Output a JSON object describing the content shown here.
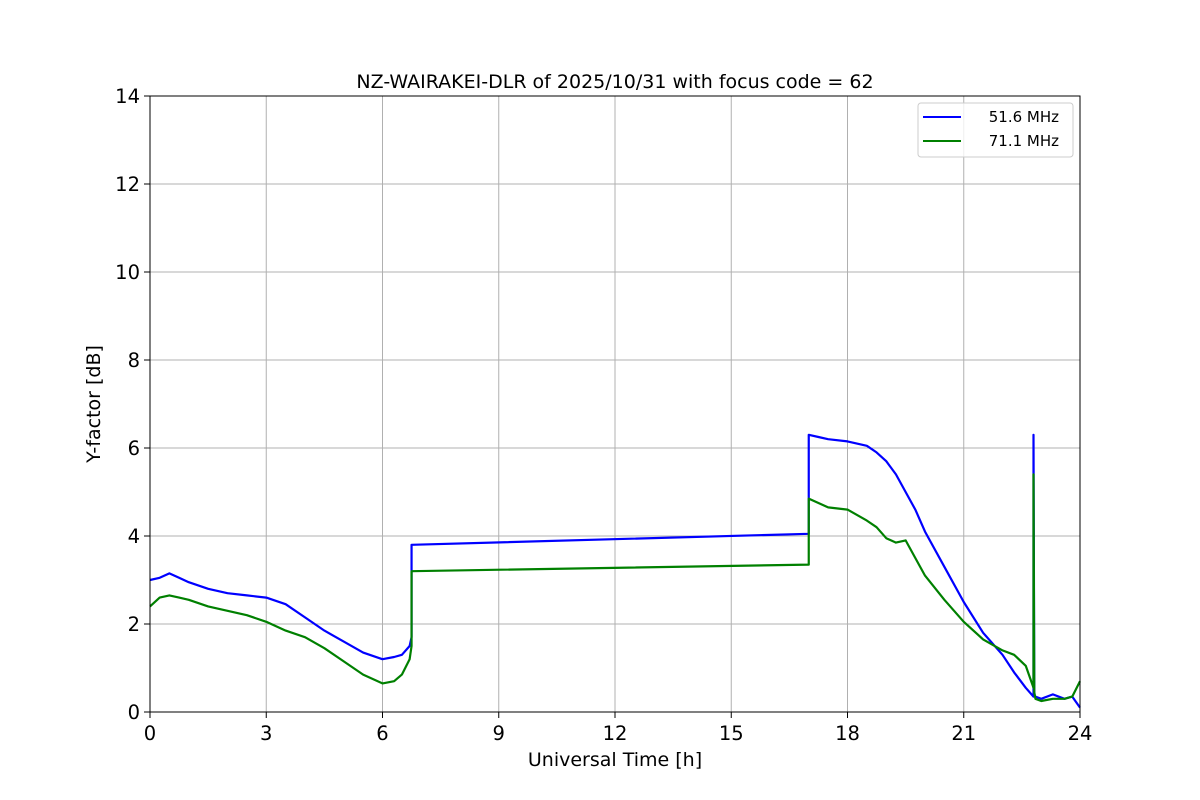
{
  "chart_data": {
    "type": "line",
    "title": "NZ-WAIRAKEI-DLR of 2025/10/31 with focus code = 62",
    "xlabel": "Universal Time [h]",
    "ylabel": "Y-factor [dB]",
    "xlim": [
      0,
      24
    ],
    "ylim": [
      0,
      14
    ],
    "xticks": [
      0,
      3,
      6,
      9,
      12,
      15,
      18,
      21,
      24
    ],
    "yticks": [
      0,
      2,
      4,
      6,
      8,
      10,
      12,
      14
    ],
    "grid": true,
    "legend_position": "top-right",
    "series": [
      {
        "name": "51.6 MHz",
        "color": "#0000ff",
        "x": [
          0,
          0.25,
          0.5,
          0.75,
          1,
          1.5,
          2,
          2.5,
          3,
          3.5,
          4,
          4.5,
          5,
          5.5,
          6,
          6.3,
          6.5,
          6.7,
          6.75,
          6.75,
          17.0,
          17.0,
          17.25,
          17.5,
          18,
          18.5,
          18.75,
          19,
          19.25,
          19.5,
          19.75,
          20,
          20.5,
          21,
          21.5,
          22,
          22.3,
          22.6,
          22.8,
          22.8,
          22.82,
          22.85,
          23,
          23.3,
          23.6,
          23.8,
          24
        ],
        "y": [
          3.0,
          3.05,
          3.15,
          3.05,
          2.95,
          2.8,
          2.7,
          2.65,
          2.6,
          2.45,
          2.15,
          1.85,
          1.6,
          1.35,
          1.2,
          1.25,
          1.3,
          1.5,
          1.7,
          3.8,
          4.05,
          6.3,
          6.25,
          6.2,
          6.15,
          6.05,
          5.9,
          5.7,
          5.4,
          5.0,
          4.6,
          4.1,
          3.3,
          2.5,
          1.8,
          1.3,
          0.9,
          0.55,
          0.35,
          6.3,
          0.4,
          0.35,
          0.3,
          0.4,
          0.3,
          0.35,
          0.1
        ]
      },
      {
        "name": "71.1 MHz",
        "color": "#008000",
        "x": [
          0,
          0.25,
          0.5,
          0.75,
          1,
          1.5,
          2,
          2.5,
          3,
          3.5,
          4,
          4.5,
          5,
          5.5,
          6,
          6.3,
          6.5,
          6.7,
          6.75,
          6.75,
          17.0,
          17.0,
          17.25,
          17.5,
          18,
          18.5,
          18.75,
          19,
          19.25,
          19.5,
          19.75,
          20,
          20.5,
          21,
          21.5,
          22,
          22.3,
          22.6,
          22.8,
          22.8,
          22.82,
          22.85,
          23,
          23.3,
          23.6,
          23.8,
          24
        ],
        "y": [
          2.4,
          2.6,
          2.65,
          2.6,
          2.55,
          2.4,
          2.3,
          2.2,
          2.05,
          1.85,
          1.7,
          1.45,
          1.15,
          0.85,
          0.65,
          0.7,
          0.85,
          1.2,
          1.5,
          3.2,
          3.35,
          4.85,
          4.75,
          4.65,
          4.6,
          4.35,
          4.2,
          3.95,
          3.85,
          3.9,
          3.5,
          3.1,
          2.55,
          2.05,
          1.65,
          1.4,
          1.3,
          1.05,
          0.55,
          5.4,
          0.45,
          0.3,
          0.25,
          0.3,
          0.3,
          0.35,
          0.7
        ]
      }
    ]
  }
}
